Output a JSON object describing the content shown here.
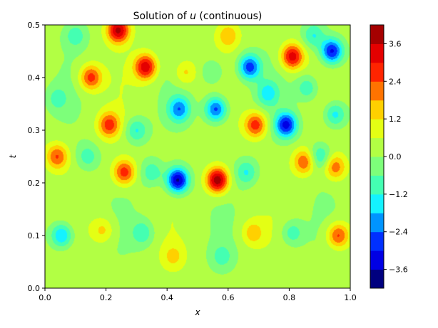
{
  "chart_data": {
    "type": "heatmap",
    "title": "Solution of u (continuous)",
    "title_prefix": "Solution of ",
    "title_var": "u",
    "title_suffix": " (continuous)",
    "xlabel": "x",
    "ylabel": "t",
    "xlim": [
      0.0,
      1.0
    ],
    "ylim": [
      0.0,
      0.5
    ],
    "x_ticks": [
      0.0,
      0.2,
      0.4,
      0.6,
      0.8,
      1.0
    ],
    "x_tick_labels": [
      "0.0",
      "0.2",
      "0.4",
      "0.6",
      "0.8",
      "1.0"
    ],
    "y_ticks": [
      0.0,
      0.1,
      0.2,
      0.3,
      0.4,
      0.5
    ],
    "y_tick_labels": [
      "0.0",
      "0.1",
      "0.2",
      "0.3",
      "0.4",
      "0.5"
    ],
    "colorbar": {
      "levels": [
        -4.2,
        -3.6,
        -3.0,
        -2.4,
        -1.8,
        -1.2,
        -0.6,
        0.0,
        0.6,
        1.2,
        1.8,
        2.4,
        3.0,
        3.6,
        4.2
      ],
      "tick_values": [
        -3.6,
        -2.4,
        -1.2,
        0.0,
        1.2,
        2.4,
        3.6
      ],
      "tick_labels": [
        "−3.6",
        "−2.4",
        "−1.2",
        "0.0",
        "1.2",
        "2.4",
        "3.6"
      ],
      "colors": [
        "#00007f",
        "#0000e4",
        "#0030ff",
        "#0094ff",
        "#14f2ff",
        "#44ffb2",
        "#7dff7a",
        "#b2ff44",
        "#e4ff14",
        "#ffd000",
        "#ff7300",
        "#ff2400",
        "#e40000",
        "#a50000"
      ]
    },
    "features": [
      {
        "x": 0.435,
        "t": 0.205,
        "value": -4.1
      },
      {
        "x": 0.565,
        "t": 0.205,
        "value": 3.9
      },
      {
        "x": 0.44,
        "t": 0.34,
        "value": -2.4
      },
      {
        "x": 0.56,
        "t": 0.34,
        "value": -3.0
      },
      {
        "x": 0.33,
        "t": 0.42,
        "value": 3.2
      },
      {
        "x": 0.24,
        "t": 0.49,
        "value": 3.5
      },
      {
        "x": 0.26,
        "t": 0.22,
        "value": 2.6
      },
      {
        "x": 0.21,
        "t": 0.31,
        "value": 2.4
      },
      {
        "x": 0.3,
        "t": 0.3,
        "value": -1.6
      },
      {
        "x": 0.69,
        "t": 0.31,
        "value": 2.6
      },
      {
        "x": 0.67,
        "t": 0.42,
        "value": -3.0
      },
      {
        "x": 0.79,
        "t": 0.31,
        "value": -3.4
      },
      {
        "x": 0.81,
        "t": 0.44,
        "value": 3.2
      },
      {
        "x": 0.94,
        "t": 0.45,
        "value": -3.5
      },
      {
        "x": 0.85,
        "t": 0.24,
        "value": 2.2
      },
      {
        "x": 0.95,
        "t": 0.23,
        "value": 2.0
      },
      {
        "x": 0.9,
        "t": 0.25,
        "value": -1.6
      },
      {
        "x": 0.66,
        "t": 0.22,
        "value": -1.5
      },
      {
        "x": 0.35,
        "t": 0.22,
        "value": -1.3
      },
      {
        "x": 0.055,
        "t": 0.1,
        "value": -2.3
      },
      {
        "x": 0.96,
        "t": 0.1,
        "value": 2.4
      },
      {
        "x": 0.19,
        "t": 0.11,
        "value": 1.2
      },
      {
        "x": 0.32,
        "t": 0.105,
        "value": -1.3
      },
      {
        "x": 0.68,
        "t": 0.105,
        "value": 1.3
      },
      {
        "x": 0.81,
        "t": 0.105,
        "value": -1.3
      },
      {
        "x": 0.04,
        "t": 0.25,
        "value": 2.2
      },
      {
        "x": 0.15,
        "t": 0.4,
        "value": 2.5
      },
      {
        "x": 0.14,
        "t": 0.25,
        "value": -1.2
      },
      {
        "x": 0.55,
        "t": 0.41,
        "value": -1.1
      },
      {
        "x": 0.46,
        "t": 0.41,
        "value": 1.2
      },
      {
        "x": 0.73,
        "t": 0.37,
        "value": -1.6
      },
      {
        "x": 0.86,
        "t": 0.38,
        "value": -1.4
      },
      {
        "x": 0.42,
        "t": 0.06,
        "value": 1.0
      },
      {
        "x": 0.58,
        "t": 0.06,
        "value": -1.0
      },
      {
        "x": 0.1,
        "t": 0.48,
        "value": -1.2
      },
      {
        "x": 0.6,
        "t": 0.48,
        "value": 1.4
      },
      {
        "x": 0.88,
        "t": 0.48,
        "value": -1.5
      },
      {
        "x": 0.04,
        "t": 0.36,
        "value": -1.0
      },
      {
        "x": 0.95,
        "t": 0.33,
        "value": -1.8
      }
    ]
  }
}
